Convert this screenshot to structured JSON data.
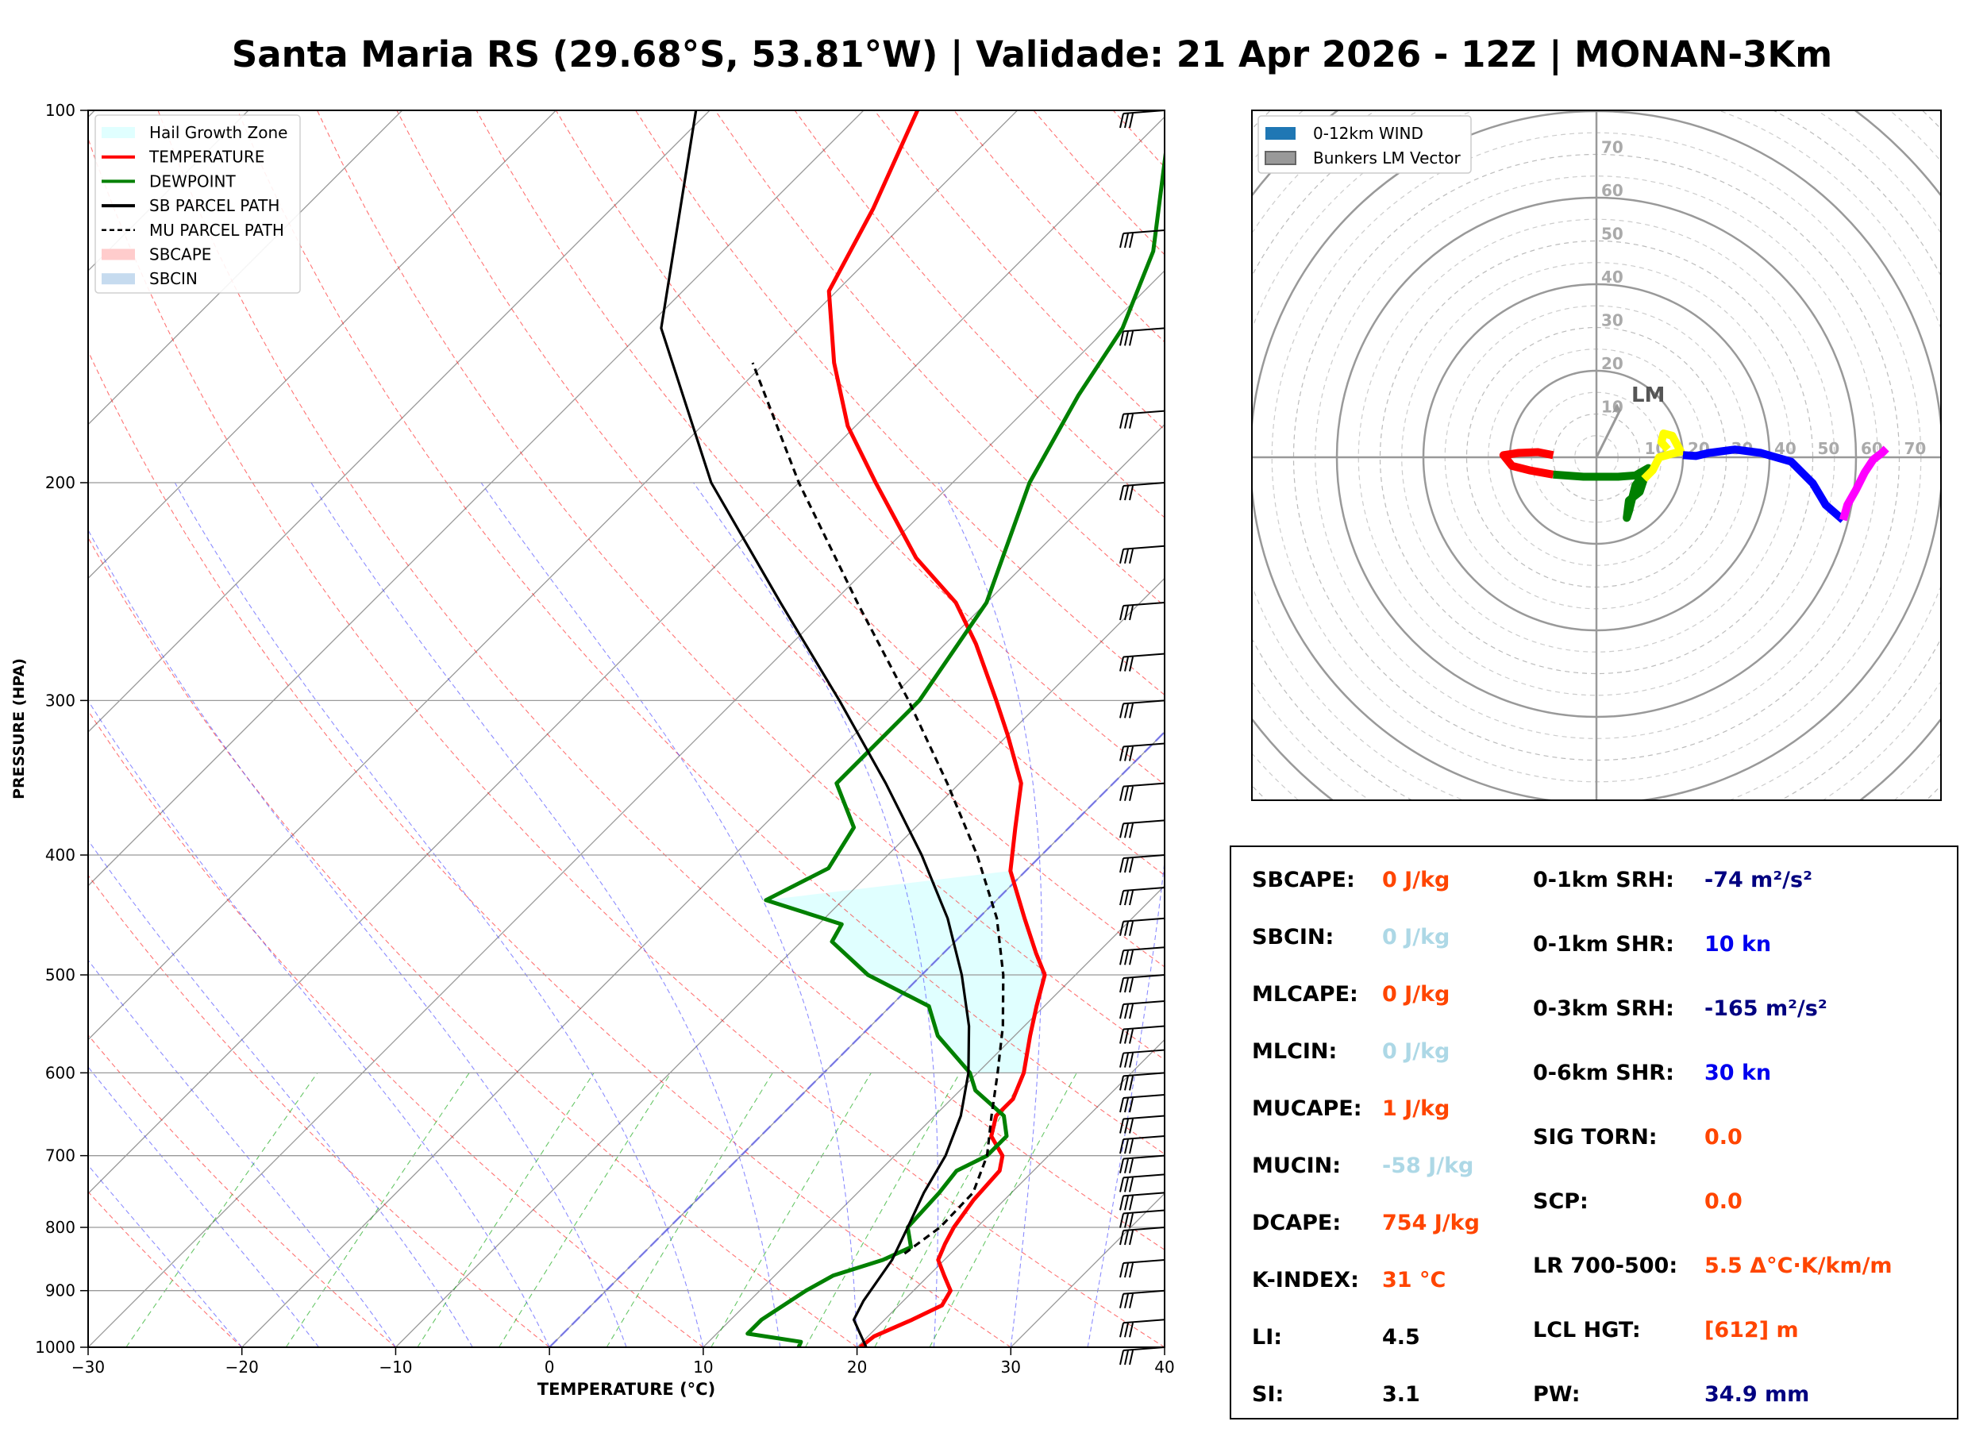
{
  "title": "Santa Maria RS (29.68°S, 53.81°W) | Validade: 21 Apr 2026 - 12Z | MONAN-3Km",
  "skewt": {
    "xlabel": "TEMPERATURE (°C)",
    "ylabel": "PRESSURE (HPA)",
    "xlim": [
      -30,
      40
    ],
    "ylim": [
      1000,
      100
    ],
    "xticks": [
      -30,
      -20,
      -10,
      0,
      10,
      20,
      30,
      40
    ],
    "xtick_labels": [
      "−30",
      "−20",
      "−10",
      "0",
      "10",
      "20",
      "30",
      "40"
    ],
    "yticks": [
      100,
      200,
      300,
      400,
      500,
      600,
      700,
      800,
      900,
      1000
    ],
    "ytick_labels": [
      "100",
      "200",
      "300",
      "400",
      "500",
      "600",
      "700",
      "800",
      "900",
      "1000"
    ],
    "grid": true,
    "hail_growth_zone_hpa": [
      412,
      600
    ],
    "legend": {
      "placement": "top-left",
      "entries": [
        {
          "label": "Hail Growth Zone",
          "color": "#e0ffff",
          "kind": "patch"
        },
        {
          "label": "TEMPERATURE",
          "color": "#ff0000",
          "kind": "line"
        },
        {
          "label": "DEWPOINT",
          "color": "#008000",
          "kind": "line"
        },
        {
          "label": "SB PARCEL PATH",
          "color": "#000000",
          "kind": "line"
        },
        {
          "label": "MU PARCEL PATH",
          "color": "#000000",
          "kind": "dashed"
        },
        {
          "label": "SBCAPE",
          "color": "#ffcccc",
          "kind": "patch"
        },
        {
          "label": "SBCIN",
          "color": "#c6dbef",
          "kind": "patch"
        }
      ]
    }
  },
  "chart_data": [
    {
      "type": "line",
      "subtype": "skew-t log-p",
      "series": [
        {
          "name": "TEMPERATURE",
          "color": "#ff0000",
          "points": [
            [
              1000,
              20.2
            ],
            [
              980,
              20.4
            ],
            [
              950,
              21.8
            ],
            [
              925,
              22.8
            ],
            [
              900,
              22.4
            ],
            [
              875,
              21.0
            ],
            [
              850,
              19.6
            ],
            [
              825,
              19.0
            ],
            [
              800,
              18.5
            ],
            [
              760,
              18.0
            ],
            [
              720,
              17.8
            ],
            [
              700,
              17.0
            ],
            [
              675,
              15.0
            ],
            [
              650,
              14.0
            ],
            [
              630,
              14.0
            ],
            [
              600,
              13.0
            ],
            [
              560,
              11.0
            ],
            [
              530,
              9.5
            ],
            [
              500,
              8.0
            ],
            [
              480,
              6.0
            ],
            [
              450,
              3.0
            ],
            [
              412,
              -1.0
            ],
            [
              380,
              -3.5
            ],
            [
              350,
              -6.0
            ],
            [
              320,
              -10.0
            ],
            [
              300,
              -13.0
            ],
            [
              270,
              -18.0
            ],
            [
              250,
              -22.0
            ],
            [
              230,
              -27.5
            ],
            [
              200,
              -35.0
            ],
            [
              180,
              -40.5
            ],
            [
              160,
              -45.5
            ],
            [
              140,
              -50.5
            ],
            [
              120,
              -53.0
            ],
            [
              100,
              -56.5
            ]
          ]
        },
        {
          "name": "DEWPOINT",
          "color": "#008000",
          "points": [
            [
              1000,
              16.2
            ],
            [
              990,
              16.0
            ],
            [
              975,
              12.0
            ],
            [
              950,
              12.0
            ],
            [
              925,
              12.5
            ],
            [
              900,
              13.0
            ],
            [
              875,
              13.8
            ],
            [
              850,
              16.0
            ],
            [
              830,
              17.0
            ],
            [
              800,
              15.5
            ],
            [
              750,
              15.3
            ],
            [
              720,
              15.0
            ],
            [
              700,
              16.0
            ],
            [
              675,
              16.0
            ],
            [
              650,
              14.5
            ],
            [
              620,
              11.0
            ],
            [
              600,
              9.5
            ],
            [
              560,
              5.0
            ],
            [
              530,
              2.5
            ],
            [
              500,
              -3.5
            ],
            [
              470,
              -8.0
            ],
            [
              455,
              -8.5
            ],
            [
              435,
              -15.0
            ],
            [
              410,
              -13.0
            ],
            [
              380,
              -14.0
            ],
            [
              350,
              -18.0
            ],
            [
              300,
              -18.0
            ],
            [
              250,
              -20.0
            ],
            [
              200,
              -25.0
            ],
            [
              170,
              -27.5
            ],
            [
              150,
              -29.0
            ],
            [
              130,
              -32.0
            ],
            [
              100,
              -40.0
            ]
          ]
        },
        {
          "name": "SB PARCEL PATH",
          "color": "#000000",
          "dash": false,
          "points": [
            [
              1000,
              20.6
            ],
            [
              950,
              18.0
            ],
            [
              917,
              17.4
            ],
            [
              850,
              16.6
            ],
            [
              800,
              15.5
            ],
            [
              750,
              14.3
            ],
            [
              700,
              13.3
            ],
            [
              650,
              11.7
            ],
            [
              600,
              9.4
            ],
            [
              550,
              6.4
            ],
            [
              500,
              2.6
            ],
            [
              450,
              -2.0
            ],
            [
              400,
              -7.8
            ],
            [
              350,
              -14.8
            ],
            [
              300,
              -23.2
            ],
            [
              250,
              -33.4
            ],
            [
              200,
              -45.7
            ],
            [
              150,
              -59.0
            ],
            [
              100,
              -70.9
            ]
          ]
        },
        {
          "name": "MU PARCEL PATH",
          "color": "#000000",
          "dash": true,
          "points": [
            [
              840,
              17.0
            ],
            [
              800,
              17.6
            ],
            [
              750,
              17.5
            ],
            [
              700,
              16.0
            ],
            [
              650,
              13.7
            ],
            [
              600,
              11.3
            ],
            [
              550,
              8.6
            ],
            [
              500,
              5.3
            ],
            [
              450,
              1.2
            ],
            [
              400,
              -4.2
            ],
            [
              350,
              -10.8
            ],
            [
              300,
              -18.7
            ],
            [
              250,
              -28.4
            ],
            [
              200,
              -40.0
            ],
            [
              160,
              -50.8
            ]
          ]
        }
      ],
      "wind_barbs_hpa": [
        100,
        125,
        150,
        175,
        200,
        225,
        250,
        275,
        300,
        325,
        350,
        375,
        400,
        425,
        450,
        475,
        500,
        525,
        550,
        575,
        600,
        625,
        650,
        675,
        700,
        725,
        750,
        775,
        800,
        850,
        900,
        950,
        1000
      ]
    },
    {
      "type": "line",
      "subtype": "hodograph",
      "rings": [
        10,
        20,
        30,
        40,
        50,
        60,
        70
      ],
      "ring_labels": [
        "10",
        "20",
        "30",
        "40",
        "50",
        "60",
        "70"
      ],
      "legend": {
        "placement": "top-left",
        "entries": [
          {
            "label": "0-12km WIND",
            "color": "#1f77b4"
          },
          {
            "label": "Bunkers LM Vector",
            "color": "#999999"
          }
        ]
      },
      "lm_label": "LM",
      "lm_vector": [
        5.5,
        11.0
      ],
      "series": [
        {
          "color": "#ff0000",
          "points": [
            [
              -10,
              0.5
            ],
            [
              -13.5,
              1.2
            ],
            [
              -18,
              1.0
            ],
            [
              -21.5,
              0.5
            ],
            [
              -19.5,
              -2.0
            ],
            [
              -15.5,
              -3.0
            ],
            [
              -10,
              -4.0
            ]
          ]
        },
        {
          "color": "#008000",
          "points": [
            [
              -10,
              -4.0
            ],
            [
              -3,
              -4.5
            ],
            [
              5,
              -4.5
            ],
            [
              9,
              -4.2
            ],
            [
              12,
              -2.5
            ],
            [
              9,
              -6.5
            ],
            [
              7.5,
              -12.5
            ],
            [
              7,
              -14.0
            ],
            [
              7.5,
              -10.0
            ],
            [
              10,
              -8.0
            ],
            [
              11,
              -5.0
            ]
          ]
        },
        {
          "color": "#ffff00",
          "points": [
            [
              11,
              -5.0
            ],
            [
              13,
              -3.0
            ],
            [
              14.5,
              0
            ],
            [
              17.5,
              0.8
            ],
            [
              19.5,
              1.3
            ],
            [
              17.5,
              5.0
            ],
            [
              15.5,
              5.5
            ],
            [
              15,
              3.5
            ],
            [
              16.5,
              1.8
            ]
          ]
        },
        {
          "color": "#0000ff",
          "points": [
            [
              20,
              0.5
            ],
            [
              23,
              0.3
            ],
            [
              26,
              1.0
            ],
            [
              32,
              1.8
            ],
            [
              38,
              1.0
            ],
            [
              45,
              -1.0
            ],
            [
              50,
              -6.0
            ],
            [
              53,
              -11.0
            ],
            [
              57,
              -14.5
            ]
          ]
        },
        {
          "color": "#ff00ff",
          "points": [
            [
              57,
              -14.5
            ],
            [
              58,
              -11.0
            ],
            [
              60,
              -7.5
            ],
            [
              62,
              -3.5
            ],
            [
              64,
              -0.5
            ],
            [
              66,
              1.0
            ],
            [
              67,
              2.0
            ]
          ]
        }
      ]
    }
  ],
  "indices": {
    "left": [
      {
        "label": "SBCAPE:",
        "value": "0 J/kg",
        "color": "#ff4500"
      },
      {
        "label": "SBCIN:",
        "value": "0 J/kg",
        "color": "#add8e6"
      },
      {
        "label": "MLCAPE:",
        "value": "0 J/kg",
        "color": "#ff4500"
      },
      {
        "label": "MLCIN:",
        "value": "0 J/kg",
        "color": "#add8e6"
      },
      {
        "label": "MUCAPE:",
        "value": "1 J/kg",
        "color": "#ff4500"
      },
      {
        "label": "MUCIN:",
        "value": "-58 J/kg",
        "color": "#add8e6"
      },
      {
        "label": "DCAPE:",
        "value": "754 J/kg",
        "color": "#ff4500"
      },
      {
        "label": "K-INDEX:",
        "value": "31 °C",
        "color": "#ff4500"
      },
      {
        "label": "LI:",
        "value": "4.5",
        "color": "#000000"
      },
      {
        "label": "SI:",
        "value": "3.1",
        "color": "#000000"
      }
    ],
    "right": [
      {
        "label": "0-1km SRH:",
        "value": "-74 m²/s²",
        "color": "#000080"
      },
      {
        "label": "0-1km SHR:",
        "value": "10 kn",
        "color": "#0000ee"
      },
      {
        "label": "0-3km SRH:",
        "value": "-165 m²/s²",
        "color": "#000080"
      },
      {
        "label": "0-6km SHR:",
        "value": "30 kn",
        "color": "#0000ee"
      },
      {
        "label": "SIG TORN:",
        "value": "0.0",
        "color": "#ff4500"
      },
      {
        "label": "SCP:",
        "value": "0.0",
        "color": "#ff4500"
      },
      {
        "label": "LR 700-500:",
        "value": "5.5 Δ°C·K/km/m",
        "color": "#ff4500"
      },
      {
        "label": "LCL HGT:",
        "value": "[612] m",
        "color": "#ff4500"
      },
      {
        "label": "PW:",
        "value": "34.9 mm",
        "color": "#000080"
      }
    ]
  }
}
